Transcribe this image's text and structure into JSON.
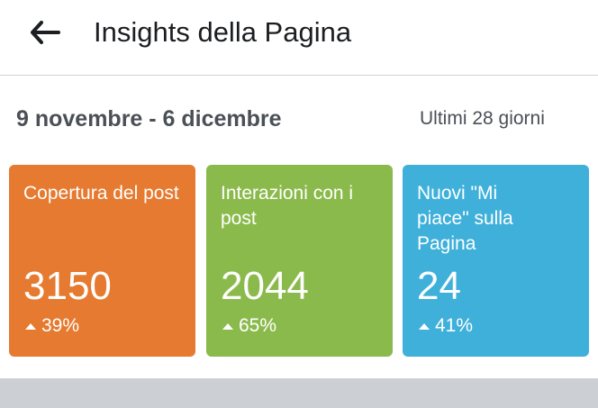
{
  "header": {
    "title": "Insights della Pagina"
  },
  "range": {
    "dates": "9 novembre - 6 dicembre",
    "period": "Ultimi 28 giorni"
  },
  "cards": [
    {
      "label": "Copertura del post",
      "value": "3150",
      "change": "39%",
      "color": "#e57a30"
    },
    {
      "label": "Interazioni con i post",
      "value": "2044",
      "change": "65%",
      "color": "#8bba4c"
    },
    {
      "label": "Nuovi \"Mi piace\" sulla Pagina",
      "value": "24",
      "change": "41%",
      "color": "#3fb0da"
    }
  ],
  "icons": {
    "back": "arrow-left-icon",
    "trend": "triangle-up-icon",
    "period_dropdown": "chevron-down-icon"
  }
}
